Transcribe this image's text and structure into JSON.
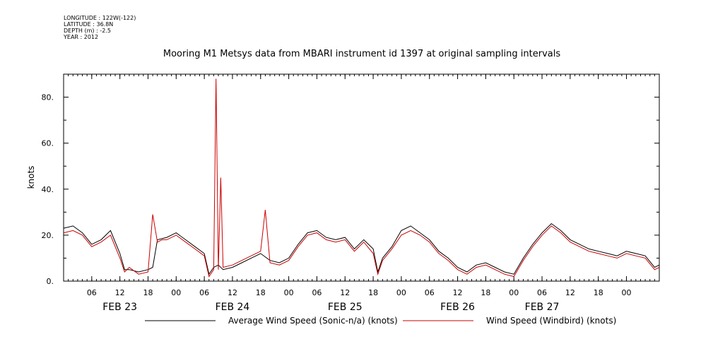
{
  "metadata": {
    "longitude": "LONGITUDE : 122W(-122)",
    "latitude": "LATITUDE : 36.8N",
    "depth": "DEPTH (m) : -2.5",
    "year": "YEAR : 2012"
  },
  "chart_data": {
    "type": "line",
    "title": "Mooring M1 Metsys data from MBARI instrument id 1397 at original sampling intervals",
    "ylabel": "knots",
    "xlabel": "",
    "x_unit": "hours since FEB 23 00:00 (2012)",
    "xlim": [
      0,
      127
    ],
    "ylim": [
      0,
      90
    ],
    "yticks": [
      0,
      20,
      40,
      60,
      80
    ],
    "ytick_labels": [
      "0.",
      "20.",
      "40.",
      "60.",
      "80."
    ],
    "xticks_hours": [
      6,
      12,
      18,
      24,
      30,
      36,
      42,
      48,
      54,
      60,
      66,
      72,
      78,
      84,
      90,
      96,
      102,
      108,
      114,
      120
    ],
    "xtick_labels": [
      "06",
      "12",
      "18",
      "00",
      "06",
      "12",
      "18",
      "00",
      "06",
      "12",
      "18",
      "00",
      "06",
      "12",
      "18",
      "00",
      "06",
      "12",
      "18",
      "00"
    ],
    "date_labels": [
      {
        "label": "FEB 23",
        "hour": 12
      },
      {
        "label": "FEB 24",
        "hour": 36
      },
      {
        "label": "FEB 25",
        "hour": 60
      },
      {
        "label": "FEB 26",
        "hour": 84
      },
      {
        "label": "FEB 27",
        "hour": 102
      }
    ],
    "grid": false,
    "legend_placement": "bottom",
    "series": [
      {
        "name": "Average Wind Speed (Sonic-n/a) (knots)",
        "color": "#000000",
        "x": [
          0,
          2,
          4,
          6,
          8,
          10,
          12,
          13,
          14,
          16,
          18,
          19,
          20,
          22,
          24,
          26,
          28,
          30,
          31,
          32,
          33,
          34,
          36,
          38,
          40,
          42,
          44,
          46,
          48,
          50,
          52,
          54,
          56,
          58,
          60,
          62,
          64,
          66,
          67,
          68,
          70,
          72,
          74,
          76,
          78,
          80,
          82,
          84,
          86,
          88,
          90,
          92,
          94,
          96,
          98,
          100,
          102,
          104,
          106,
          108,
          110,
          112,
          114,
          116,
          118,
          120,
          122,
          124,
          126,
          127
        ],
        "y": [
          23,
          24,
          21,
          16,
          18,
          22,
          12,
          5,
          5,
          4,
          5,
          6,
          18,
          19,
          21,
          18,
          15,
          12,
          3,
          6,
          7,
          5,
          6,
          8,
          10,
          12,
          9,
          8,
          10,
          16,
          21,
          22,
          19,
          18,
          19,
          14,
          18,
          14,
          4,
          10,
          15,
          22,
          24,
          21,
          18,
          13,
          10,
          6,
          4,
          7,
          8,
          6,
          4,
          3,
          10,
          16,
          21,
          25,
          22,
          18,
          16,
          14,
          13,
          12,
          11,
          13,
          12,
          11,
          6,
          7
        ]
      },
      {
        "name": "Wind Speed (Windbird) (knots)",
        "color": "#cc0000",
        "x": [
          0,
          2,
          4,
          6,
          8,
          10,
          12,
          13,
          14,
          16,
          18,
          19,
          20,
          21,
          22,
          24,
          26,
          28,
          30,
          31,
          32,
          32.5,
          33,
          33.5,
          34,
          36,
          38,
          40,
          42,
          43,
          44,
          46,
          48,
          50,
          52,
          54,
          56,
          58,
          60,
          62,
          64,
          66,
          67,
          68,
          70,
          72,
          74,
          76,
          78,
          80,
          82,
          84,
          86,
          88,
          90,
          92,
          94,
          96,
          98,
          100,
          102,
          104,
          106,
          108,
          110,
          112,
          114,
          116,
          118,
          120,
          122,
          124,
          126,
          127
        ],
        "y": [
          21,
          22,
          20,
          15,
          17,
          20,
          10,
          4,
          6,
          3,
          4,
          29,
          17,
          18,
          18,
          20,
          17,
          14,
          11,
          2,
          5,
          88,
          5,
          45,
          6,
          7,
          9,
          11,
          13,
          31,
          8,
          7,
          9,
          15,
          20,
          21,
          18,
          17,
          18,
          13,
          17,
          12,
          3,
          9,
          14,
          20,
          22,
          20,
          17,
          12,
          9,
          5,
          3,
          6,
          7,
          5,
          3,
          2,
          9,
          15,
          20,
          24,
          21,
          17,
          15,
          13,
          12,
          11,
          10,
          12,
          11,
          10,
          5,
          6
        ]
      }
    ]
  }
}
